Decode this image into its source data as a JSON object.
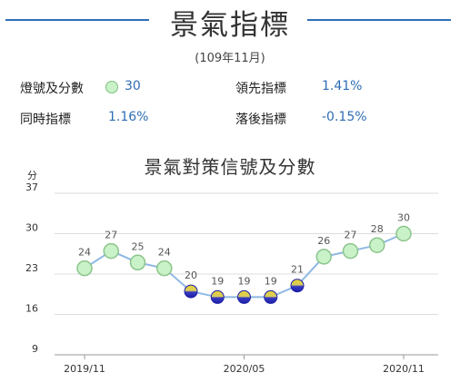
{
  "header": {
    "title": "景氣指標",
    "period": "(109年11月)"
  },
  "stats": {
    "signal_label": "燈號及分數",
    "signal_score": "30",
    "leading_label": "領先指標",
    "leading_value": "1.41%",
    "coincident_label": "同時指標",
    "coincident_value": "1.16%",
    "lagging_label": "落後指標",
    "lagging_value": "-0.15%"
  },
  "colors": {
    "accent": "#2f6db5",
    "green_light": "#c9f2c9",
    "blue_light": "#1c1fa8",
    "yellow_blue_top": "#e8d230",
    "line": "#8fb8e3"
  },
  "chart_data": {
    "type": "line",
    "title": "景氣對策信號及分數",
    "ylabel": "分",
    "ylim": [
      9,
      37
    ],
    "yticks": [
      9,
      16,
      23,
      30,
      37
    ],
    "x": [
      "2019/11",
      "2019/12",
      "2020/01",
      "2020/02",
      "2020/03",
      "2020/04",
      "2020/05",
      "2020/06",
      "2020/07",
      "2020/08",
      "2020/09",
      "2020/10",
      "2020/11"
    ],
    "xtick_labels": [
      "2019/11",
      "2020/05",
      "2020/11"
    ],
    "values": [
      24,
      27,
      25,
      24,
      20,
      19,
      19,
      19,
      21,
      26,
      27,
      28,
      30
    ],
    "signal": [
      "green",
      "green",
      "green",
      "green",
      "yellow-blue",
      "yellow-blue",
      "yellow-blue",
      "yellow-blue",
      "yellow-blue",
      "green",
      "green",
      "green",
      "green"
    ],
    "grid": true
  }
}
